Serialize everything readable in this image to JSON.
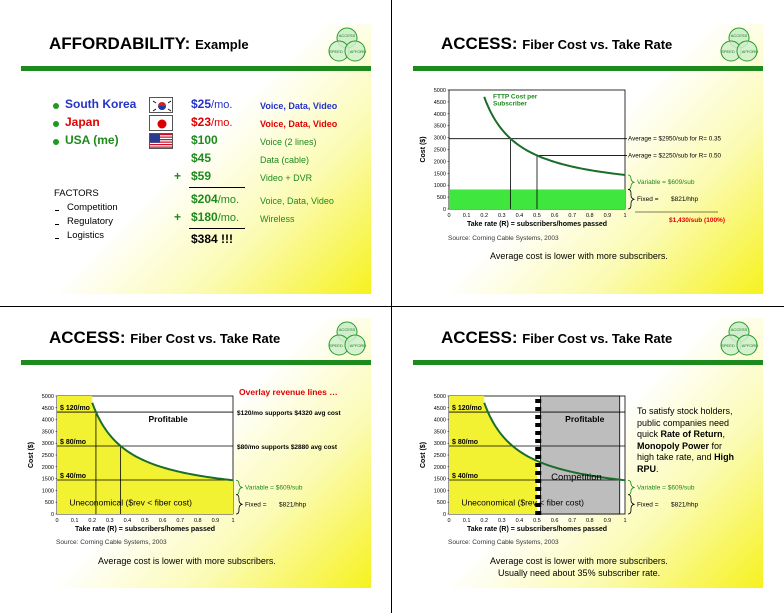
{
  "logo": {
    "top": "ACCESS",
    "left": "SPEED",
    "right": "AFFORD"
  },
  "slide1": {
    "title_main": "AFFORDABILITY:",
    "title_sub": "Example",
    "countries": [
      {
        "name": "South Korea",
        "price": "$25",
        "unit": "/mo.",
        "desc": "Voice, Data, Video",
        "flag": "korea-flag-icon"
      },
      {
        "name": "Japan",
        "price": "$23",
        "unit": "/mo.",
        "desc": "Voice, Data, Video",
        "flag": "japan-flag-icon"
      },
      {
        "name": "USA (me)",
        "price": "$100",
        "unit": "",
        "desc": "Voice (2 lines)",
        "flag": "usa-flag-icon"
      }
    ],
    "extra_rows": [
      {
        "plus": "",
        "price": "$45",
        "desc": "Data (cable)"
      },
      {
        "plus": "+",
        "price": "$59",
        "desc": "Video + DVR"
      },
      {
        "plus": "",
        "price": "$204",
        "unit": "/mo.",
        "desc": "Voice, Data, Video"
      },
      {
        "plus": "+",
        "price": "$180",
        "unit": "/mo.",
        "desc": "Wireless"
      }
    ],
    "total": "$384 !!!",
    "factors_label": "FACTORS",
    "factors": [
      "Competition",
      "Regulatory",
      "Logistics"
    ]
  },
  "chart_common": {
    "y_ticks": [
      "5000",
      "4500",
      "4000",
      "3500",
      "3000",
      "2500",
      "2000",
      "1500",
      "1000",
      "500",
      "0"
    ],
    "x_ticks": [
      "0",
      "0.1",
      "0.2",
      "0.3",
      "0.4",
      "0.5",
      "0.6",
      "0.7",
      "0.8",
      "0.9",
      "1"
    ],
    "ylabel": "Cost ($)",
    "xlabel": "Take rate (R) = subscribers/homes passed",
    "source": "Source:   Corning Cable Systems, 2003",
    "variable_label": "Variable = $609/sub",
    "fixed_label": "Fixed =",
    "fixed_value": "$821/hhp",
    "caption": "Average cost is lower with more subscribers."
  },
  "slide2": {
    "title_main": "ACCESS:",
    "title_sub": "Fiber Cost vs. Take Rate",
    "curve_label_1": "FTTP Cost per",
    "curve_label_2": "Subscriber",
    "avg1": "Average = $2950/sub for R= 0.35",
    "avg2": "Average = $2250/sub for R= 0.50",
    "total_label": "$1,430/sub (100%)"
  },
  "slide3": {
    "title_main": "ACCESS:",
    "title_sub": "Fiber Cost vs. Take Rate",
    "overlay": "Overlay revenue lines …",
    "rev120": "$ 120/mo",
    "rev80": "$ 80/mo",
    "rev40": "$ 40/mo",
    "profitable": "Profitable",
    "uneconomical": "Uneconomical ($rev < fiber cost)",
    "supports120": "$120/mo supports $4320 avg cost",
    "supports80": "$80/mo supports $2880 avg cost"
  },
  "slide4": {
    "title_main": "ACCESS:",
    "title_sub": "Fiber Cost vs. Take Rate",
    "rev120": "$ 120/mo",
    "rev80": "$ 80/mo",
    "rev40": "$ 40/mo",
    "profitable": "Profitable",
    "competition": "Competition",
    "uneconomical": "Uneconomical ($rev < fiber cost)",
    "note_1": "To satisfy stock holders,",
    "note_2": "public companies need",
    "note_3a": "quick ",
    "note_3b": "Rate of Return",
    "note_3c": ",",
    "note_4a": "Monopoly Power",
    "note_4b": " for",
    "note_5a": "high take rate, and ",
    "note_5b": "High",
    "note_6": "RPU",
    "note_6b": ".",
    "caption2": "Usually need about 35% subscriber rate."
  },
  "chart_data": [
    {
      "type": "line",
      "title": "ACCESS: Fiber Cost vs. Take Rate",
      "xlabel": "Take rate (R) = subscribers/homes passed",
      "ylabel": "Cost ($)",
      "xlim": [
        0,
        1
      ],
      "ylim": [
        0,
        5000
      ],
      "series": [
        {
          "name": "FTTP Cost per Subscriber",
          "x": [
            0.2,
            0.25,
            0.3,
            0.35,
            0.4,
            0.5,
            0.6,
            0.7,
            0.8,
            0.9,
            1.0
          ],
          "y": [
            4714,
            3893,
            3346,
            2955,
            2662,
            2251,
            1977,
            1782,
            1635,
            1521,
            1430
          ]
        }
      ],
      "fixed_per_hhp": 821,
      "variable_per_sub": 609,
      "annotations": [
        "Average = $2950/sub for R= 0.35",
        "Average = $2250/sub for R= 0.50",
        "$1,430/sub (100%)"
      ]
    },
    {
      "type": "line",
      "title": "ACCESS: Fiber Cost vs. Take Rate",
      "xlim": [
        0,
        1
      ],
      "ylim": [
        0,
        5000
      ],
      "revenue_lines": [
        {
          "name": "$ 120/mo",
          "y": 4320
        },
        {
          "name": "$ 80/mo",
          "y": 2880
        },
        {
          "name": "$ 40/mo",
          "y": 1440
        }
      ]
    }
  ]
}
